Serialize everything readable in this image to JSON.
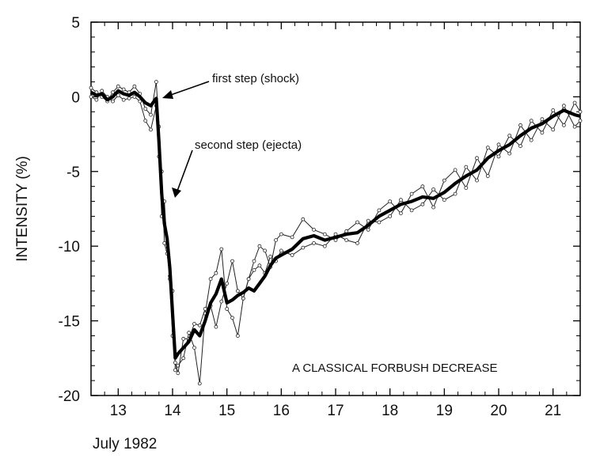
{
  "chart_data": {
    "type": "line",
    "title": "",
    "ylabel": "INTENSITY (%)",
    "xlabel": "July 1982",
    "inside_label": "A CLASSICAL FORBUSH DECREASE",
    "xlim": [
      12.5,
      21.5
    ],
    "ylim": [
      -20,
      5
    ],
    "xticks": [
      13,
      14,
      15,
      16,
      17,
      18,
      19,
      20,
      21
    ],
    "xtick_labels": [
      "13",
      "14",
      "15",
      "16",
      "17",
      "18",
      "19",
      "20",
      "21"
    ],
    "yticks": [
      5,
      0,
      -5,
      -10,
      -15,
      -20
    ],
    "ytick_labels": [
      "5",
      "0",
      "-5",
      "-10",
      "-15",
      "-20"
    ],
    "grid": false,
    "legend": "none",
    "annotations": [
      {
        "text": "first step (shock)",
        "x": 13.72,
        "y": -0.1
      },
      {
        "text": "second step (ejecta)",
        "x": 13.88,
        "y": -7.6
      }
    ],
    "series": [
      {
        "style": "thick",
        "x": [
          12.5,
          12.6,
          12.7,
          12.8,
          12.9,
          13.0,
          13.1,
          13.2,
          13.3,
          13.4,
          13.5,
          13.6,
          13.7,
          13.75,
          13.8,
          13.85,
          13.9,
          13.95,
          14.0,
          14.05,
          14.1,
          14.2,
          14.3,
          14.4,
          14.5,
          14.6,
          14.7,
          14.8,
          14.9,
          15.0,
          15.1,
          15.2,
          15.3,
          15.4,
          15.5,
          15.6,
          15.7,
          15.8,
          15.9,
          16.0,
          16.2,
          16.4,
          16.6,
          16.8,
          17.0,
          17.2,
          17.4,
          17.6,
          17.8,
          18.0,
          18.2,
          18.4,
          18.6,
          18.8,
          19.0,
          19.2,
          19.4,
          19.6,
          19.8,
          20.0,
          20.2,
          20.4,
          20.6,
          20.8,
          21.0,
          21.2,
          21.4,
          21.5
        ],
        "y": [
          0.3,
          0.1,
          0.2,
          -0.2,
          0.0,
          0.4,
          0.2,
          0.1,
          0.3,
          0.0,
          -0.4,
          -0.6,
          -0.1,
          -3.0,
          -6.5,
          -8.5,
          -9.5,
          -11.5,
          -14.5,
          -17.5,
          -17.2,
          -16.8,
          -16.4,
          -15.6,
          -16.0,
          -15.0,
          -13.8,
          -13.2,
          -12.2,
          -13.8,
          -13.6,
          -13.3,
          -13.1,
          -12.8,
          -13.0,
          -12.5,
          -12.0,
          -11.3,
          -10.8,
          -10.6,
          -10.2,
          -9.5,
          -9.3,
          -9.6,
          -9.4,
          -9.2,
          -9.1,
          -8.6,
          -8.0,
          -7.6,
          -7.2,
          -7.0,
          -6.7,
          -6.8,
          -6.4,
          -5.8,
          -5.3,
          -4.9,
          -4.1,
          -3.6,
          -3.2,
          -2.6,
          -2.1,
          -1.8,
          -1.3,
          -0.9,
          -1.2,
          -1.3
        ]
      },
      {
        "style": "thin-markers",
        "x": [
          12.5,
          12.6,
          12.7,
          12.8,
          12.9,
          13.0,
          13.1,
          13.2,
          13.3,
          13.4,
          13.5,
          13.6,
          13.7,
          13.75,
          13.8,
          13.85,
          13.9,
          13.95,
          14.0,
          14.05,
          14.1,
          14.2,
          14.3,
          14.4,
          14.5,
          14.6,
          14.7,
          14.8,
          14.9,
          15.0,
          15.1,
          15.2,
          15.3,
          15.4,
          15.5,
          15.6,
          15.7,
          15.8,
          15.9,
          16.0,
          16.2,
          16.4,
          16.6,
          16.8,
          17.0,
          17.2,
          17.4,
          17.6,
          17.8,
          18.0,
          18.2,
          18.4,
          18.6,
          18.8,
          19.0,
          19.2,
          19.4,
          19.6,
          19.8,
          20.0,
          20.2,
          20.4,
          20.6,
          20.8,
          21.0,
          21.2,
          21.4,
          21.5
        ],
        "y": [
          0.6,
          0.3,
          0.0,
          -0.3,
          0.3,
          0.7,
          0.5,
          0.3,
          0.7,
          0.2,
          -0.8,
          -1.2,
          1.0,
          -2.0,
          -5.0,
          -9.8,
          -10.5,
          -12.0,
          -13.0,
          -18.3,
          -18.0,
          -17.5,
          -15.8,
          -16.8,
          -19.2,
          -14.5,
          -12.2,
          -11.8,
          -10.2,
          -14.2,
          -14.8,
          -16.0,
          -13.5,
          -12.2,
          -11.0,
          -10.0,
          -10.3,
          -11.4,
          -9.6,
          -9.2,
          -9.4,
          -8.2,
          -8.9,
          -9.2,
          -9.6,
          -9.0,
          -8.4,
          -8.9,
          -7.6,
          -7.0,
          -7.8,
          -6.5,
          -6.0,
          -7.4,
          -5.6,
          -4.9,
          -6.1,
          -4.1,
          -5.3,
          -3.2,
          -3.8,
          -1.9,
          -2.9,
          -1.5,
          -2.2,
          -0.6,
          -2.0,
          -1.6
        ]
      },
      {
        "style": "thin-markers",
        "x": [
          12.5,
          12.6,
          12.7,
          12.8,
          12.9,
          13.0,
          13.1,
          13.2,
          13.3,
          13.4,
          13.5,
          13.6,
          13.7,
          13.75,
          13.8,
          13.85,
          13.9,
          13.95,
          14.0,
          14.05,
          14.1,
          14.2,
          14.3,
          14.4,
          14.5,
          14.6,
          14.7,
          14.8,
          14.9,
          15.0,
          15.1,
          15.2,
          15.3,
          15.4,
          15.5,
          15.6,
          15.7,
          15.8,
          15.9,
          16.0,
          16.2,
          16.4,
          16.6,
          16.8,
          17.0,
          17.2,
          17.4,
          17.6,
          17.8,
          18.0,
          18.2,
          18.4,
          18.6,
          18.8,
          19.0,
          19.2,
          19.4,
          19.6,
          19.8,
          20.0,
          20.2,
          20.4,
          20.6,
          20.8,
          21.0,
          21.2,
          21.4,
          21.5
        ],
        "y": [
          0.0,
          -0.2,
          0.4,
          0.0,
          -0.3,
          0.1,
          -0.2,
          -0.1,
          0.0,
          -0.3,
          -1.6,
          -2.2,
          -0.6,
          -4.0,
          -8.0,
          -7.0,
          -10.2,
          -12.2,
          -16.0,
          -17.8,
          -18.5,
          -16.2,
          -16.2,
          -15.2,
          -15.3,
          -14.2,
          -14.0,
          -15.4,
          -13.7,
          -12.5,
          -11.0,
          -13.0,
          -13.5,
          -12.2,
          -11.6,
          -11.3,
          -11.8,
          -10.7,
          -11.0,
          -10.3,
          -10.6,
          -10.1,
          -9.8,
          -10.0,
          -9.2,
          -9.6,
          -9.8,
          -8.3,
          -8.4,
          -8.0,
          -6.9,
          -7.6,
          -7.2,
          -6.2,
          -6.9,
          -6.5,
          -4.7,
          -5.6,
          -3.4,
          -4.0,
          -2.6,
          -3.3,
          -1.6,
          -2.4,
          -0.9,
          -1.9,
          -0.4,
          -1.0
        ]
      }
    ]
  }
}
